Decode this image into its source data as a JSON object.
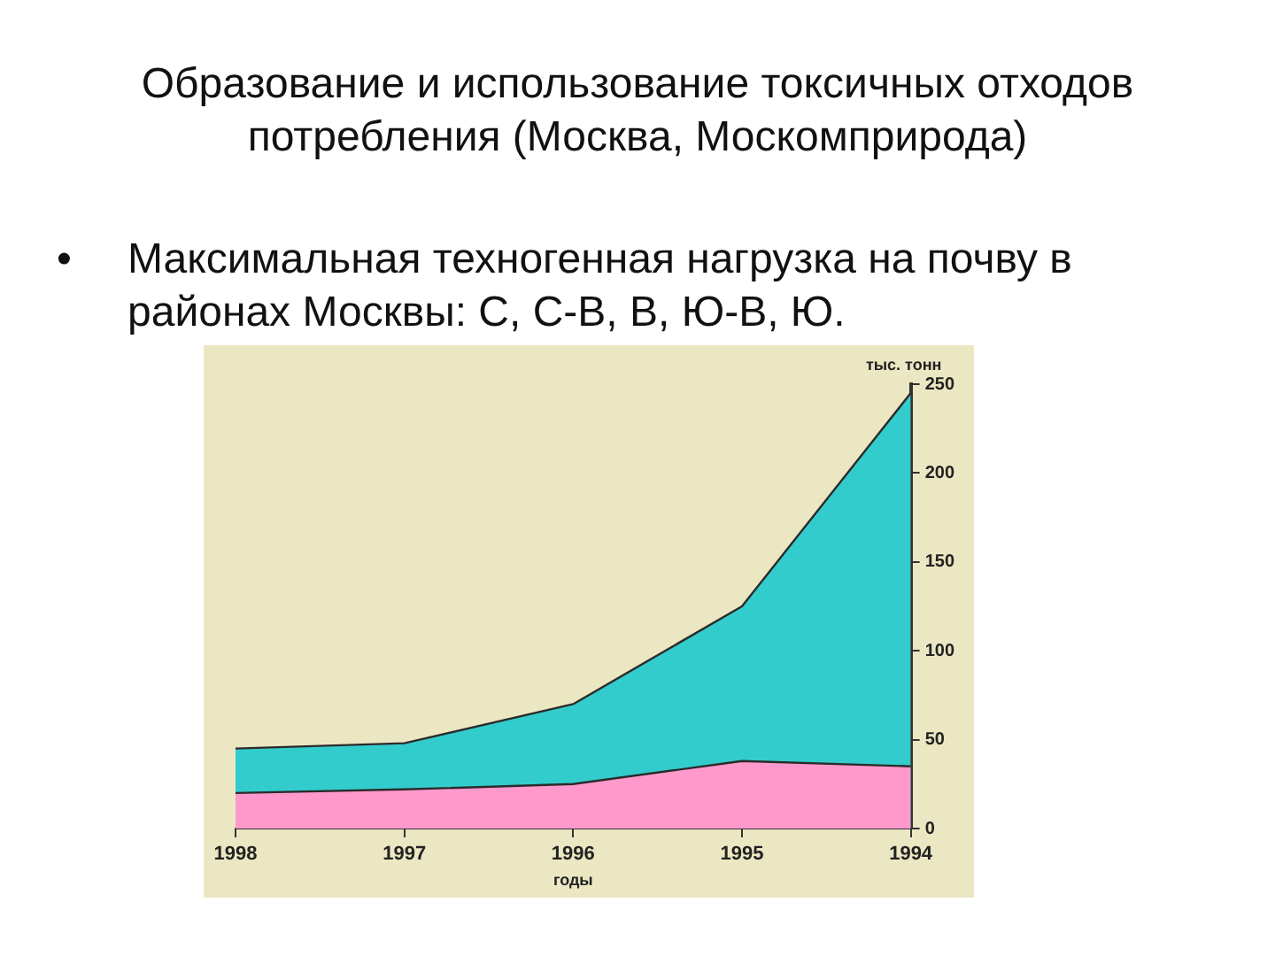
{
  "chart_data": {
    "type": "area",
    "title": "Образование и использование токсичных отходов потребления (Москва, Москомприрода)",
    "subtitle": "• Максимальная техногенная нагрузка на почву в районах Москвы: С, С-В, В, Ю-В, Ю.",
    "xlabel": "годы",
    "ylabel": "тыс. тонн",
    "categories": [
      "1998",
      "1997",
      "1996",
      "1995",
      "1994"
    ],
    "series": [
      {
        "color": "#33cccc",
        "values": [
          45,
          48,
          70,
          125,
          245
        ]
      },
      {
        "color": "#ff99cc",
        "values": [
          20,
          22,
          25,
          38,
          35
        ]
      }
    ],
    "ylim": [
      0,
      250
    ],
    "yticks": [
      0,
      50,
      100,
      150,
      200,
      250
    ],
    "grid": false
  }
}
